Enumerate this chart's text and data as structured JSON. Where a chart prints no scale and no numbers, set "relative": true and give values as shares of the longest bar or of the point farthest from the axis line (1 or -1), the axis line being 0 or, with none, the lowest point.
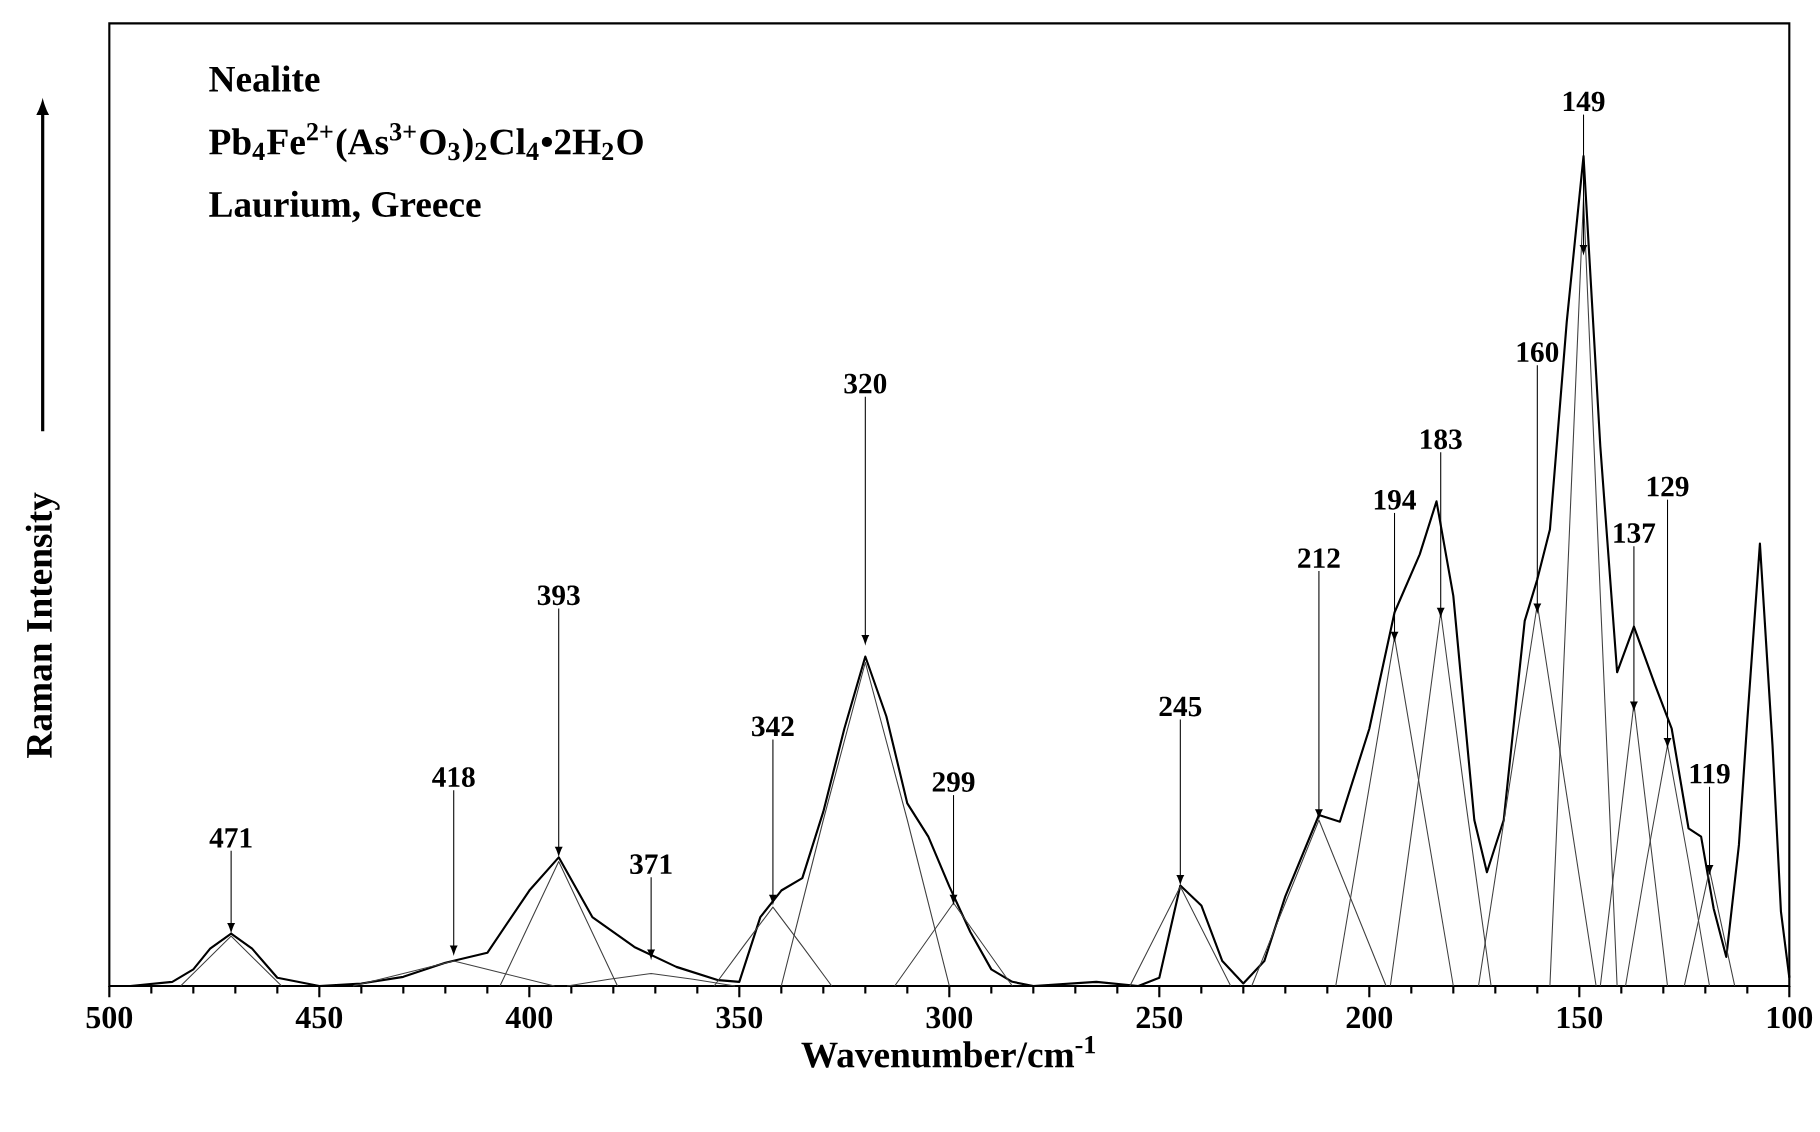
{
  "chart_data": {
    "type": "line",
    "title": "Nealite",
    "subtitle": "Pb$_{4}$Fe$^{2+}$(As$^{3+}$O$_{3}$)$_{2}$Cl$_{4}$•2H$_{2}$O",
    "xlabel": "Wavenumber/cm$^{-1}$",
    "ylabel": "Raman Intensity",
    "relative": true,
    "tick_labels": "x",
    "xlim": [
      500,
      100
    ],
    "xticks": [
      500,
      450,
      400,
      350,
      300,
      250,
      200,
      150,
      100
    ],
    "line_style": "solid",
    "series": [
      {
        "color": "#000000",
        "x": [
          495,
          485,
          480,
          476,
          471,
          466,
          460,
          450,
          440,
          430,
          420,
          410,
          400,
          393,
          385,
          375,
          365,
          355,
          350,
          345,
          340,
          335,
          330,
          325,
          320,
          315,
          310,
          305,
          300,
          295,
          290,
          285,
          280,
          265,
          255,
          250,
          245,
          240,
          235,
          230,
          225,
          220,
          212,
          207,
          200,
          194,
          188,
          184,
          180,
          175,
          172,
          168,
          163,
          160,
          157,
          153,
          149,
          145,
          141,
          137,
          132,
          128,
          124,
          121,
          118,
          115,
          112,
          110,
          107,
          104,
          102,
          100
        ],
        "values": [
          0,
          0.005,
          0.02,
          0.045,
          0.063,
          0.045,
          0.01,
          0,
          0.003,
          0.011,
          0.028,
          0.04,
          0.115,
          0.155,
          0.083,
          0.047,
          0.023,
          0.007,
          0.005,
          0.083,
          0.115,
          0.13,
          0.21,
          0.31,
          0.397,
          0.325,
          0.22,
          0.18,
          0.12,
          0.065,
          0.02,
          0.005,
          0,
          0.005,
          0,
          0.01,
          0.121,
          0.097,
          0.03,
          0.003,
          0.03,
          0.108,
          0.206,
          0.198,
          0.31,
          0.45,
          0.52,
          0.584,
          0.47,
          0.2,
          0.137,
          0.2,
          0.44,
          0.49,
          0.55,
          0.8,
          1.0,
          0.65,
          0.378,
          0.433,
          0.363,
          0.31,
          0.19,
          0.18,
          0.093,
          0.035,
          0.17,
          0.32,
          0.533,
          0.29,
          0.09,
          0.01
        ]
      },
      {
        "color": "#404040",
        "x": [
          483,
          477,
          471,
          465,
          459
        ],
        "values": [
          0,
          0.03,
          0.06,
          0.03,
          0
        ]
      },
      {
        "color": "#404040",
        "x": [
          442,
          430,
          418,
          406,
          394
        ],
        "values": [
          0,
          0.015,
          0.03,
          0.015,
          0
        ]
      },
      {
        "color": "#404040",
        "x": [
          407,
          400,
          393,
          386,
          379
        ],
        "values": [
          0,
          0.075,
          0.15,
          0.075,
          0
        ]
      },
      {
        "color": "#404040",
        "x": [
          391,
          381,
          371,
          361,
          351
        ],
        "values": [
          0,
          0.008,
          0.015,
          0.008,
          0
        ]
      },
      {
        "color": "#404040",
        "x": [
          356,
          349,
          342,
          335,
          328
        ],
        "values": [
          0,
          0.048,
          0.095,
          0.048,
          0
        ]
      },
      {
        "color": "#404040",
        "x": [
          340,
          330,
          320,
          310,
          300
        ],
        "values": [
          0,
          0.2,
          0.39,
          0.2,
          0
        ]
      },
      {
        "color": "#404040",
        "x": [
          313,
          306,
          299,
          292,
          285
        ],
        "values": [
          0,
          0.05,
          0.1,
          0.05,
          0
        ]
      },
      {
        "color": "#404040",
        "x": [
          257,
          251,
          245,
          239,
          233
        ],
        "values": [
          0,
          0.06,
          0.12,
          0.06,
          0
        ]
      },
      {
        "color": "#404040",
        "x": [
          228,
          220,
          212,
          204,
          196
        ],
        "values": [
          0,
          0.1,
          0.2,
          0.1,
          0
        ]
      },
      {
        "color": "#404040",
        "x": [
          208,
          201,
          194,
          187,
          180
        ],
        "values": [
          0,
          0.21,
          0.42,
          0.21,
          0
        ]
      },
      {
        "color": "#404040",
        "x": [
          195,
          189,
          183,
          177,
          171
        ],
        "values": [
          0,
          0.22,
          0.45,
          0.22,
          0
        ]
      },
      {
        "color": "#404040",
        "x": [
          174,
          167,
          160,
          153,
          146
        ],
        "values": [
          0,
          0.23,
          0.46,
          0.23,
          0
        ]
      },
      {
        "color": "#404040",
        "x": [
          157,
          153,
          149,
          145,
          141
        ],
        "values": [
          0,
          0.47,
          0.95,
          0.47,
          0
        ]
      },
      {
        "color": "#404040",
        "x": [
          145,
          141,
          137,
          133,
          129
        ],
        "values": [
          0,
          0.17,
          0.34,
          0.17,
          0
        ]
      },
      {
        "color": "#404040",
        "x": [
          139,
          134,
          129,
          124,
          119
        ],
        "values": [
          0,
          0.15,
          0.29,
          0.15,
          0
        ]
      },
      {
        "color": "#404040",
        "x": [
          125,
          122,
          119,
          116,
          113
        ],
        "values": [
          0,
          0.07,
          0.14,
          0.07,
          0
        ]
      }
    ],
    "annotations": [
      "Laurium, Greece",
      {
        "text": "471",
        "x": 471,
        "y": 0.063
      },
      {
        "text": "418",
        "x": 418,
        "y": 0.036
      },
      {
        "text": "393",
        "x": 393,
        "y": 0.155
      },
      {
        "text": "371",
        "x": 371,
        "y": 0.031
      },
      {
        "text": "342",
        "x": 342,
        "y": 0.097
      },
      {
        "text": "320",
        "x": 320,
        "y": 0.41
      },
      {
        "text": "299",
        "x": 299,
        "y": 0.097
      },
      {
        "text": "245",
        "x": 245,
        "y": 0.121
      },
      {
        "text": "212",
        "x": 212,
        "y": 0.2
      },
      {
        "text": "194",
        "x": 194,
        "y": 0.414
      },
      {
        "text": "183",
        "x": 183,
        "y": 0.443
      },
      {
        "text": "160",
        "x": 160,
        "y": 0.448
      },
      {
        "text": "149",
        "x": 149,
        "y": 0.88
      },
      {
        "text": "137",
        "x": 137,
        "y": 0.33
      },
      {
        "text": "129",
        "x": 129,
        "y": 0.286
      },
      {
        "text": "119",
        "x": 119,
        "y": 0.133
      }
    ]
  }
}
